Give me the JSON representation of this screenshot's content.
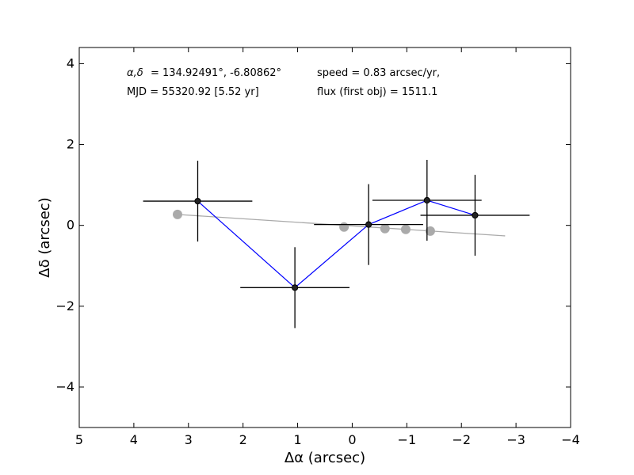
{
  "chart_data": {
    "type": "scatter",
    "title": "",
    "xlabel": "Δα (arcsec)",
    "ylabel": "Δδ (arcsec)",
    "xlim": [
      5,
      -4
    ],
    "ylim": [
      -5,
      4.4
    ],
    "x_ticks": [
      5,
      4,
      3,
      2,
      1,
      0,
      -1,
      -2,
      -3,
      -4
    ],
    "y_ticks": [
      4,
      2,
      0,
      -2,
      -4
    ],
    "x_tick_labels": [
      "5",
      "4",
      "3",
      "2",
      "1",
      "0",
      "−1",
      "−2",
      "−3",
      "−4"
    ],
    "y_tick_labels": [
      "4",
      "2",
      "0",
      "−2",
      "−4"
    ],
    "grid": false,
    "annotations": {
      "coords_prefix": "α,δ",
      "coords_values": "= 134.92491°, -6.80862°",
      "mjd": "MJD = 55320.92 [5.52 yr]",
      "speed": "speed = 0.83 arcsec/yr,",
      "flux": "flux (first obj) = 1511.1"
    },
    "series": [
      {
        "color": "#0000ff",
        "marker_color": "#000000",
        "x": [
          2.83,
          1.05,
          -0.3,
          -1.37,
          -2.25
        ],
        "y": [
          0.6,
          -1.54,
          0.02,
          0.62,
          0.25
        ],
        "x_err": [
          1.0,
          1.0,
          1.0,
          1.0,
          1.0
        ],
        "y_err": [
          1.0,
          1.0,
          1.0,
          1.0,
          1.0
        ]
      },
      {
        "color": "#aaaaaa",
        "x": [
          3.2,
          0.15,
          -0.6,
          -0.98,
          -1.43
        ],
        "y": [
          0.27,
          -0.04,
          -0.08,
          -0.1,
          -0.14
        ]
      }
    ],
    "trend_line": {
      "color": "#aaaaaa",
      "x": [
        3.2,
        -2.8
      ],
      "y": [
        0.27,
        -0.26
      ]
    }
  }
}
